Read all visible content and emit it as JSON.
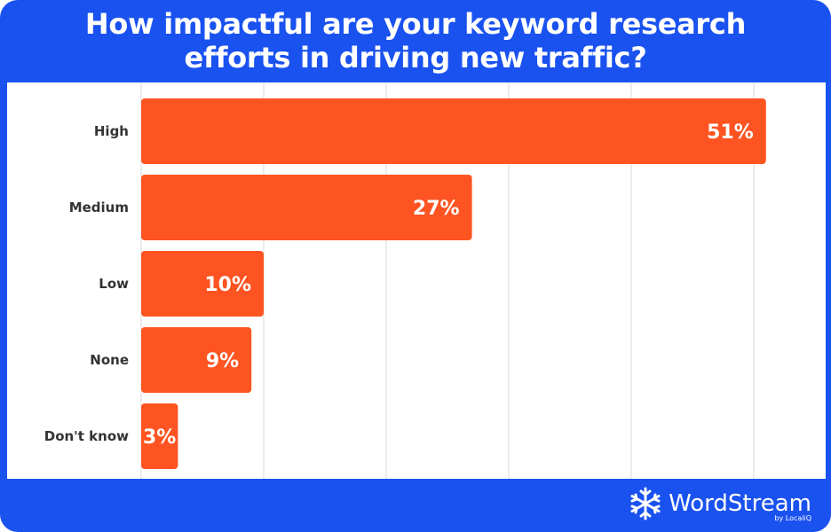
{
  "title_lines": [
    "How impactful are your keyword research",
    "efforts in driving new traffic?"
  ],
  "colors": {
    "frame": "#1a52f0",
    "bar": "#fd5421",
    "grid": "#d9d9d9",
    "label": "#333333",
    "value_text": "#ffffff"
  },
  "chart_data": {
    "type": "bar",
    "orientation": "horizontal",
    "title": "How impactful are your keyword research efforts in driving new traffic?",
    "categories": [
      "High",
      "Medium",
      "Low",
      "None",
      "Don't know"
    ],
    "values": [
      51,
      27,
      10,
      9,
      3
    ],
    "value_labels": [
      "51%",
      "27%",
      "10%",
      "9%",
      "3%"
    ],
    "xlim": [
      0,
      50
    ],
    "grid": true,
    "legend": "none"
  },
  "brand": {
    "name": "WordStream",
    "sub": "by LocaliQ",
    "icon": "snowflake-logo-icon"
  }
}
